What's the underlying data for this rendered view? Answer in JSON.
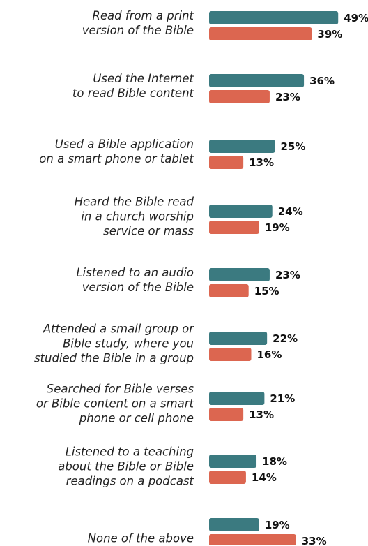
{
  "chart_data": {
    "type": "bar",
    "orientation": "horizontal",
    "categories": [
      "Read from a print\nversion of the Bible",
      "Used the Internet\nto read Bible content",
      "Used a Bible application\non a smart phone or tablet",
      "Heard the Bible read\nin a church worship\nservice or mass",
      "Listened to an audio\nversion of the Bible",
      "Attended a small group or\nBible study, where you\nstudied the Bible in a group",
      "Searched for Bible verses\nor Bible content on a smart\nphone or cell phone",
      "Listened to a teaching\nabout the Bible or Bible\nreadings on a podcast",
      "None of the above"
    ],
    "series": [
      {
        "color": "#3b7a80",
        "values": [
          49,
          36,
          25,
          24,
          23,
          22,
          21,
          18,
          19
        ],
        "value_labels": [
          "49%",
          "36%",
          "25%",
          "24%",
          "23%",
          "22%",
          "21%",
          "18%",
          "19%"
        ]
      },
      {
        "color": "#dc6650",
        "values": [
          39,
          23,
          13,
          19,
          15,
          16,
          13,
          14,
          33
        ],
        "value_labels": [
          "39%",
          "23%",
          "13%",
          "19%",
          "15%",
          "16%",
          "13%",
          "14%",
          "33%"
        ]
      }
    ],
    "xlim": [
      0,
      50
    ]
  }
}
